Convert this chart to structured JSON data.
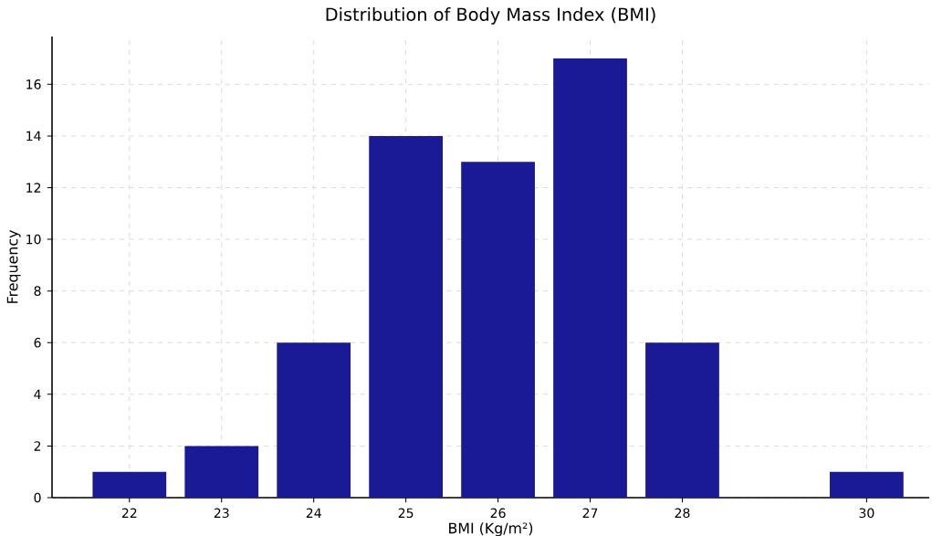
{
  "chart_data": {
    "type": "bar",
    "title": "Distribution of Body Mass Index (BMI)",
    "xlabel": "BMI (Kg/m²)",
    "ylabel": "Frequency",
    "x": [
      22,
      23,
      24,
      25,
      26,
      27,
      28,
      30
    ],
    "values": [
      1,
      2,
      6,
      14,
      13,
      17,
      6,
      1
    ],
    "color": "#1a1a96",
    "xlim": [
      21.16,
      30.68
    ],
    "ylim": [
      0,
      17.85
    ],
    "xticks": [
      22,
      23,
      24,
      25,
      26,
      27,
      28,
      30
    ],
    "yticks": [
      0,
      2,
      4,
      6,
      8,
      10,
      12,
      14,
      16
    ],
    "grid": true
  }
}
